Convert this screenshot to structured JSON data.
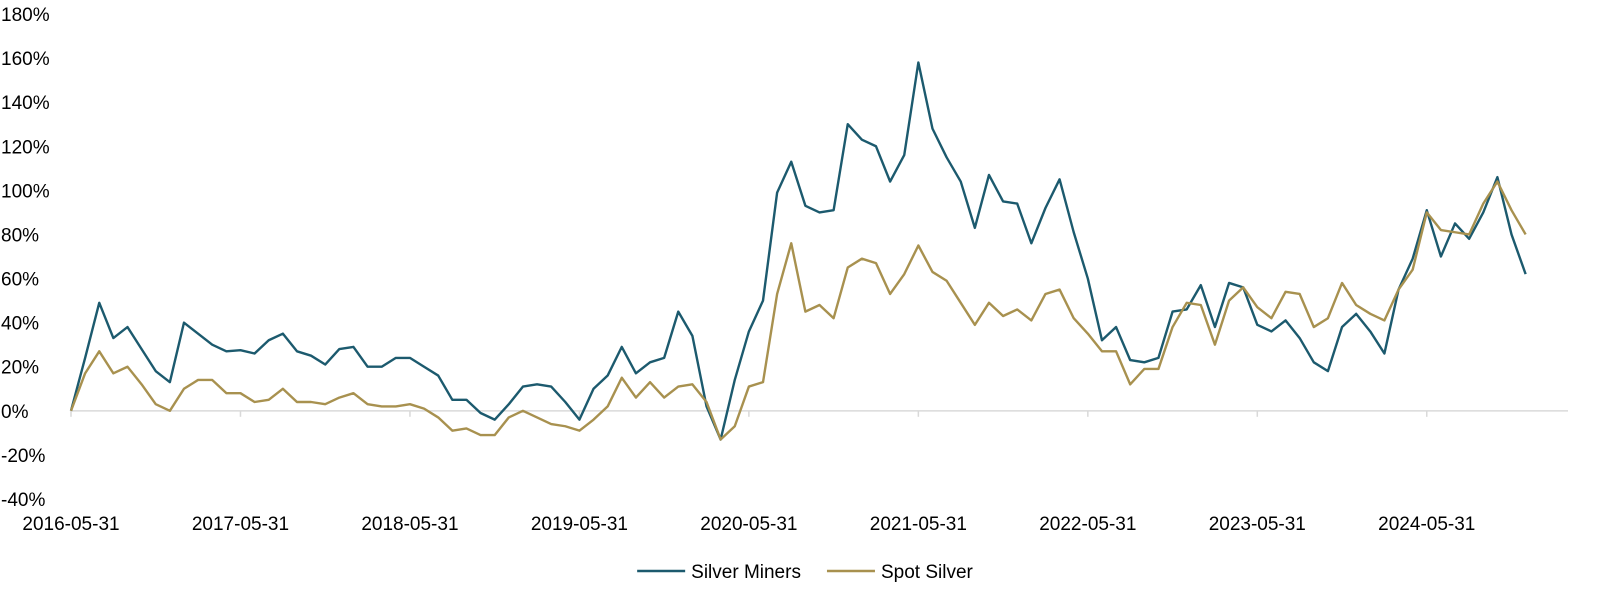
{
  "chart_data": {
    "type": "line",
    "title": "",
    "xlabel": "",
    "ylabel": "",
    "ylim": [
      -40,
      180
    ],
    "y_unit": "%",
    "yticks": [
      -40,
      -20,
      0,
      20,
      40,
      60,
      80,
      100,
      120,
      140,
      160,
      180
    ],
    "xticks": [
      "2016-05-31",
      "2017-05-31",
      "2018-05-31",
      "2019-05-31",
      "2020-05-31",
      "2021-05-31",
      "2022-05-31",
      "2023-05-31",
      "2024-05-31"
    ],
    "x_range": [
      "2016-05-31",
      "2025-03-31"
    ],
    "x_frequency": "monthly",
    "grid": false,
    "legend_position": "bottom-center",
    "colors": {
      "Silver Miners": "#1c5a6e",
      "Spot Silver": "#a8914f"
    },
    "series": [
      {
        "name": "Silver Miners",
        "values": [
          0,
          24,
          49,
          33,
          38,
          28,
          18,
          13,
          40,
          35,
          30,
          27,
          27.5,
          26,
          32,
          35,
          27,
          25,
          21,
          28,
          29,
          20,
          20,
          24,
          24,
          20,
          16,
          5,
          5,
          -1,
          -4,
          3,
          11,
          12,
          11,
          4,
          -4,
          10,
          16,
          29,
          17,
          22,
          24,
          45,
          34,
          2,
          -13,
          14,
          36,
          50,
          99,
          113,
          93,
          90,
          91,
          130,
          123,
          120,
          104,
          116,
          158,
          128,
          115,
          104,
          83,
          107,
          95,
          94,
          76,
          92,
          105,
          81,
          60,
          32,
          38,
          23,
          22,
          24,
          45,
          46,
          57,
          38,
          58,
          56,
          39,
          36,
          41,
          33,
          22,
          18,
          38,
          44,
          36,
          26,
          55,
          69,
          91,
          70,
          85,
          78,
          90,
          106,
          80,
          62
        ]
      },
      {
        "name": "Spot Silver",
        "values": [
          0,
          17,
          27,
          17,
          20,
          12,
          3,
          0,
          10,
          14,
          14,
          8,
          8,
          4,
          5,
          10,
          4,
          4,
          3,
          6,
          8,
          3,
          2,
          2,
          3,
          1,
          -3,
          -9,
          -8,
          -11,
          -11,
          -3,
          0,
          -3,
          -6,
          -7,
          -9,
          -4,
          2,
          15,
          6,
          13,
          6,
          11,
          12,
          4,
          -13,
          -7,
          11,
          13,
          53,
          76,
          45,
          48,
          42,
          65,
          69,
          67,
          53,
          62,
          75,
          63,
          59,
          49,
          39,
          49,
          43,
          46,
          41,
          53,
          55,
          42,
          35,
          27,
          27,
          12,
          19,
          19,
          38,
          49,
          48,
          30,
          50,
          56,
          47,
          42,
          54,
          53,
          38,
          42,
          58,
          48,
          44,
          41,
          55,
          64,
          90,
          82,
          81,
          80,
          94,
          104,
          91,
          80
        ]
      }
    ]
  }
}
